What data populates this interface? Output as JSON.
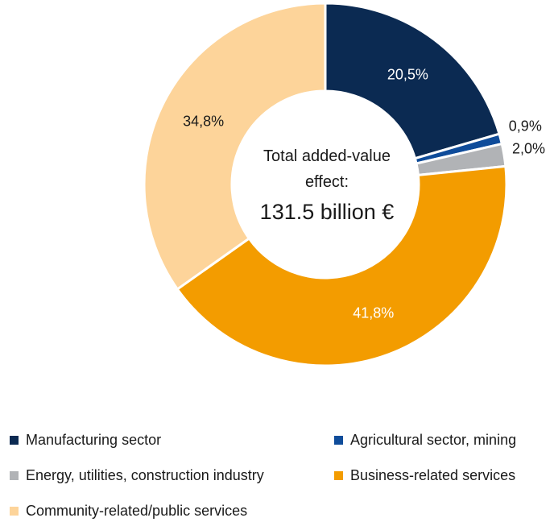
{
  "chart_data": {
    "type": "pie",
    "title": "",
    "center_label": {
      "line1": "Total added-value",
      "line2": "effect:",
      "line3": "131.5 billion €"
    },
    "slices": [
      {
        "name": "Manufacturing sector",
        "value": 20.5,
        "label": "20,5%",
        "color": "#0b2a52"
      },
      {
        "name": "Agricultural sector, mining",
        "value": 0.9,
        "label": "0,9%",
        "color": "#0f4c9a"
      },
      {
        "name": "Energy, utilities, construction industry",
        "value": 2.0,
        "label": "2,0%",
        "color": "#b1b3b6"
      },
      {
        "name": "Business-related services",
        "value": 41.8,
        "label": "41,8%",
        "color": "#f39c00"
      },
      {
        "name": "Community-related/public services",
        "value": 34.8,
        "label": "34,8%",
        "color": "#fdd49a"
      }
    ],
    "legend_position": "bottom"
  }
}
